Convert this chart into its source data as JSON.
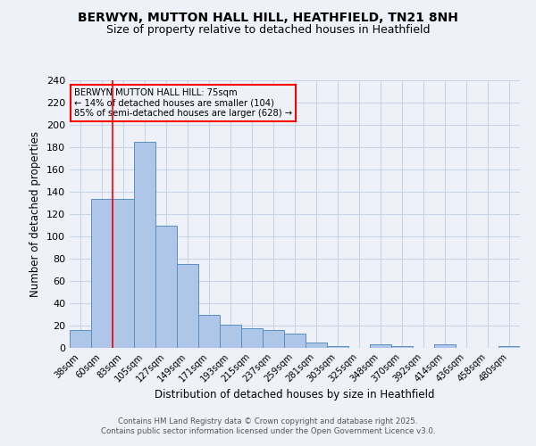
{
  "title_line1": "BERWYN, MUTTON HALL HILL, HEATHFIELD, TN21 8NH",
  "title_line2": "Size of property relative to detached houses in Heathfield",
  "categories": [
    "38sqm",
    "60sqm",
    "83sqm",
    "105sqm",
    "127sqm",
    "149sqm",
    "171sqm",
    "193sqm",
    "215sqm",
    "237sqm",
    "259sqm",
    "281sqm",
    "303sqm",
    "325sqm",
    "348sqm",
    "370sqm",
    "392sqm",
    "414sqm",
    "436sqm",
    "458sqm",
    "480sqm"
  ],
  "values": [
    16,
    134,
    134,
    185,
    110,
    75,
    30,
    21,
    18,
    16,
    13,
    5,
    2,
    0,
    3,
    2,
    0,
    3,
    0,
    0,
    2
  ],
  "bar_color": "#aec6e8",
  "bar_edge_color": "#5a8fc2",
  "grid_color": "#c8d4e8",
  "xlabel": "Distribution of detached houses by size in Heathfield",
  "ylabel": "Number of detached properties",
  "ylim": [
    0,
    240
  ],
  "yticks": [
    0,
    20,
    40,
    60,
    80,
    100,
    120,
    140,
    160,
    180,
    200,
    220,
    240
  ],
  "annotation_title": "BERWYN MUTTON HALL HILL: 75sqm",
  "annotation_line1": "← 14% of detached houses are smaller (104)",
  "annotation_line2": "85% of semi-detached houses are larger (628) →",
  "footer_line1": "Contains HM Land Registry data © Crown copyright and database right 2025.",
  "footer_line2": "Contains public sector information licensed under the Open Government Licence v3.0.",
  "background_color": "#eef2f8",
  "red_line_x": 1.5
}
